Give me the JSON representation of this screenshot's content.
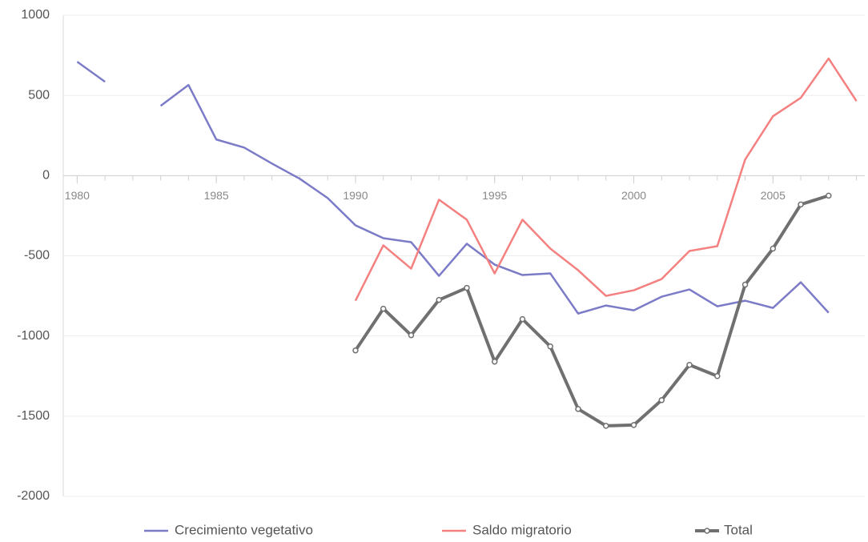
{
  "chart_data": {
    "type": "line",
    "x": [
      1980,
      1981,
      1982,
      1983,
      1984,
      1985,
      1986,
      1987,
      1988,
      1989,
      1990,
      1991,
      1992,
      1993,
      1994,
      1995,
      1996,
      1997,
      1998,
      1999,
      2000,
      2001,
      2002,
      2003,
      2004,
      2005,
      2006,
      2007,
      2008
    ],
    "series": [
      {
        "name": "Crecimiento vegetativo",
        "color": "#7b7bc8",
        "values": [
          710,
          585,
          null,
          435,
          565,
          225,
          175,
          75,
          -20,
          -140,
          -310,
          -390,
          -415,
          -625,
          -425,
          -555,
          -620,
          -610,
          -860,
          -810,
          -840,
          -755,
          -710,
          -815,
          -780,
          -825,
          -665,
          -855,
          null
        ]
      },
      {
        "name": "Saldo migratorio",
        "color": "#f58080",
        "values": [
          null,
          null,
          null,
          null,
          null,
          null,
          null,
          null,
          null,
          null,
          -780,
          -435,
          -580,
          -150,
          -275,
          -610,
          -275,
          -455,
          -590,
          -750,
          -715,
          -645,
          -470,
          -440,
          100,
          370,
          485,
          730,
          465
        ]
      },
      {
        "name": "Total",
        "color": "#707070",
        "markers": true,
        "values": [
          null,
          null,
          null,
          null,
          null,
          null,
          null,
          null,
          null,
          null,
          -1090,
          -830,
          -995,
          -775,
          -700,
          -1160,
          -895,
          -1065,
          -1455,
          -1560,
          -1555,
          -1400,
          -1180,
          -1250,
          -680,
          -455,
          -180,
          -125,
          null
        ]
      }
    ],
    "xlim": [
      1979.5,
      2008.3
    ],
    "xticks": [
      1980,
      1985,
      1990,
      1995,
      2000,
      2005
    ],
    "ylim": [
      -2000,
      1000
    ],
    "yticks": [
      -2000,
      -1500,
      -1000,
      -500,
      0,
      500,
      1000
    ],
    "grid": true,
    "legend": "bottom"
  }
}
